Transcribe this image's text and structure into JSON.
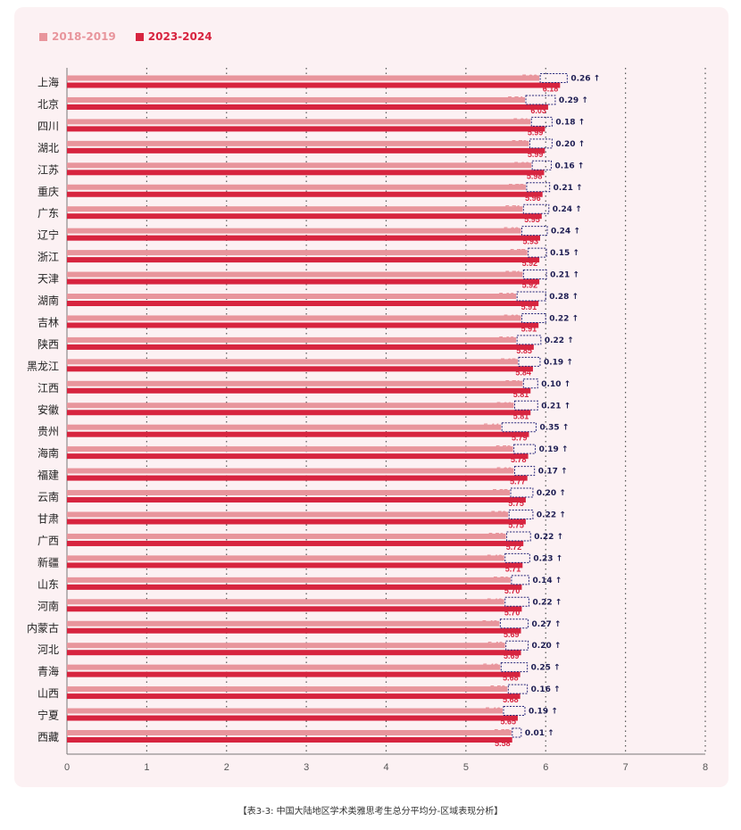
{
  "legend": {
    "series_a_label": "2018-2019",
    "series_b_label": "2023-2024"
  },
  "caption": "【表3-3: 中国大陆地区学术类雅思考生总分平均分-区域表现分析】",
  "colors": {
    "series_a": "#e8959c",
    "series_b": "#d7243f",
    "diff_text": "#1d1d52",
    "diff_border": "#26267a",
    "card_bg": "#fcf1f3"
  },
  "chart_data": {
    "type": "bar",
    "orientation": "horizontal",
    "categories": [
      "上海",
      "北京",
      "四川",
      "湖北",
      "江苏",
      "重庆",
      "广东",
      "辽宁",
      "浙江",
      "天津",
      "湖南",
      "吉林",
      "陕西",
      "黑龙江",
      "江西",
      "安徽",
      "贵州",
      "海南",
      "福建",
      "云南",
      "甘肃",
      "广西",
      "新疆",
      "山东",
      "河南",
      "内蒙古",
      "河北",
      "青海",
      "山西",
      "宁夏",
      "西藏"
    ],
    "series": [
      {
        "name": "2018-2019",
        "values": [
          5.92,
          5.74,
          5.81,
          5.79,
          5.82,
          5.75,
          5.71,
          5.69,
          5.77,
          5.71,
          5.63,
          5.69,
          5.63,
          5.65,
          5.71,
          5.6,
          5.44,
          5.59,
          5.6,
          5.55,
          5.53,
          5.5,
          5.48,
          5.56,
          5.48,
          5.42,
          5.49,
          5.43,
          5.52,
          5.46,
          5.57
        ]
      },
      {
        "name": "2023-2024",
        "values": [
          6.18,
          6.03,
          5.99,
          5.99,
          5.98,
          5.96,
          5.95,
          5.93,
          5.92,
          5.92,
          5.91,
          5.91,
          5.85,
          5.84,
          5.81,
          5.81,
          5.79,
          5.78,
          5.77,
          5.75,
          5.75,
          5.72,
          5.71,
          5.7,
          5.7,
          5.69,
          5.69,
          5.68,
          5.68,
          5.65,
          5.58
        ]
      }
    ],
    "series_labels": {
      "a": [
        "5.92",
        "5.74",
        "5.81",
        "5.79",
        "5.82",
        "5.75",
        "5.71",
        "5.69",
        "5.77",
        "5.71",
        "5.63",
        "5.69",
        "5.63",
        "5.65",
        "5.71",
        "5.60",
        "5.44",
        "5.59",
        "5.60",
        "5.55",
        "5.53",
        "5.50",
        "5.48",
        "5.56",
        "5.48",
        "5.42",
        "5.49",
        "5.43",
        "5.52",
        "5.46",
        "5.57"
      ],
      "b": [
        "6.18",
        "6.03",
        "5.99",
        "5.99",
        "5.98",
        "5.96",
        "5.95",
        "5.93",
        "5.92",
        "5.92",
        "5.91",
        "5.91",
        "5.85",
        "5.84",
        "5.81",
        "5.81",
        "5.79",
        "5.78",
        "5.77",
        "5.75",
        "5.75",
        "5.72",
        "5.71",
        "5.70",
        "5.70",
        "5.69",
        "5.69",
        "5.68",
        "5.68",
        "5.65",
        "5.58"
      ]
    },
    "differences": [
      "0.26 ↑",
      "0.29 ↑",
      "0.18 ↑",
      "0.20 ↑",
      "0.16 ↑",
      "0.21 ↑",
      "0.24 ↑",
      "0.24 ↑",
      "0.15 ↑",
      "0.21 ↑",
      "0.28 ↑",
      "0.22 ↑",
      "0.22 ↑",
      "0.19 ↑",
      "0.10 ↑",
      "0.21 ↑",
      "0.35 ↑",
      "0.19 ↑",
      "0.17 ↑",
      "0.20 ↑",
      "0.22 ↑",
      "0.22 ↑",
      "0.23 ↑",
      "0.14 ↑",
      "0.22 ↑",
      "0.27 ↑",
      "0.20 ↑",
      "0.25 ↑",
      "0.16 ↑",
      "0.19 ↑",
      "0.01 ↑"
    ],
    "xlim": [
      0,
      8
    ],
    "xticks": [
      "0",
      "1",
      "2",
      "3",
      "4",
      "5",
      "6",
      "7",
      "8"
    ],
    "grid": "vertical-dotted",
    "legend_position": "top-left"
  }
}
